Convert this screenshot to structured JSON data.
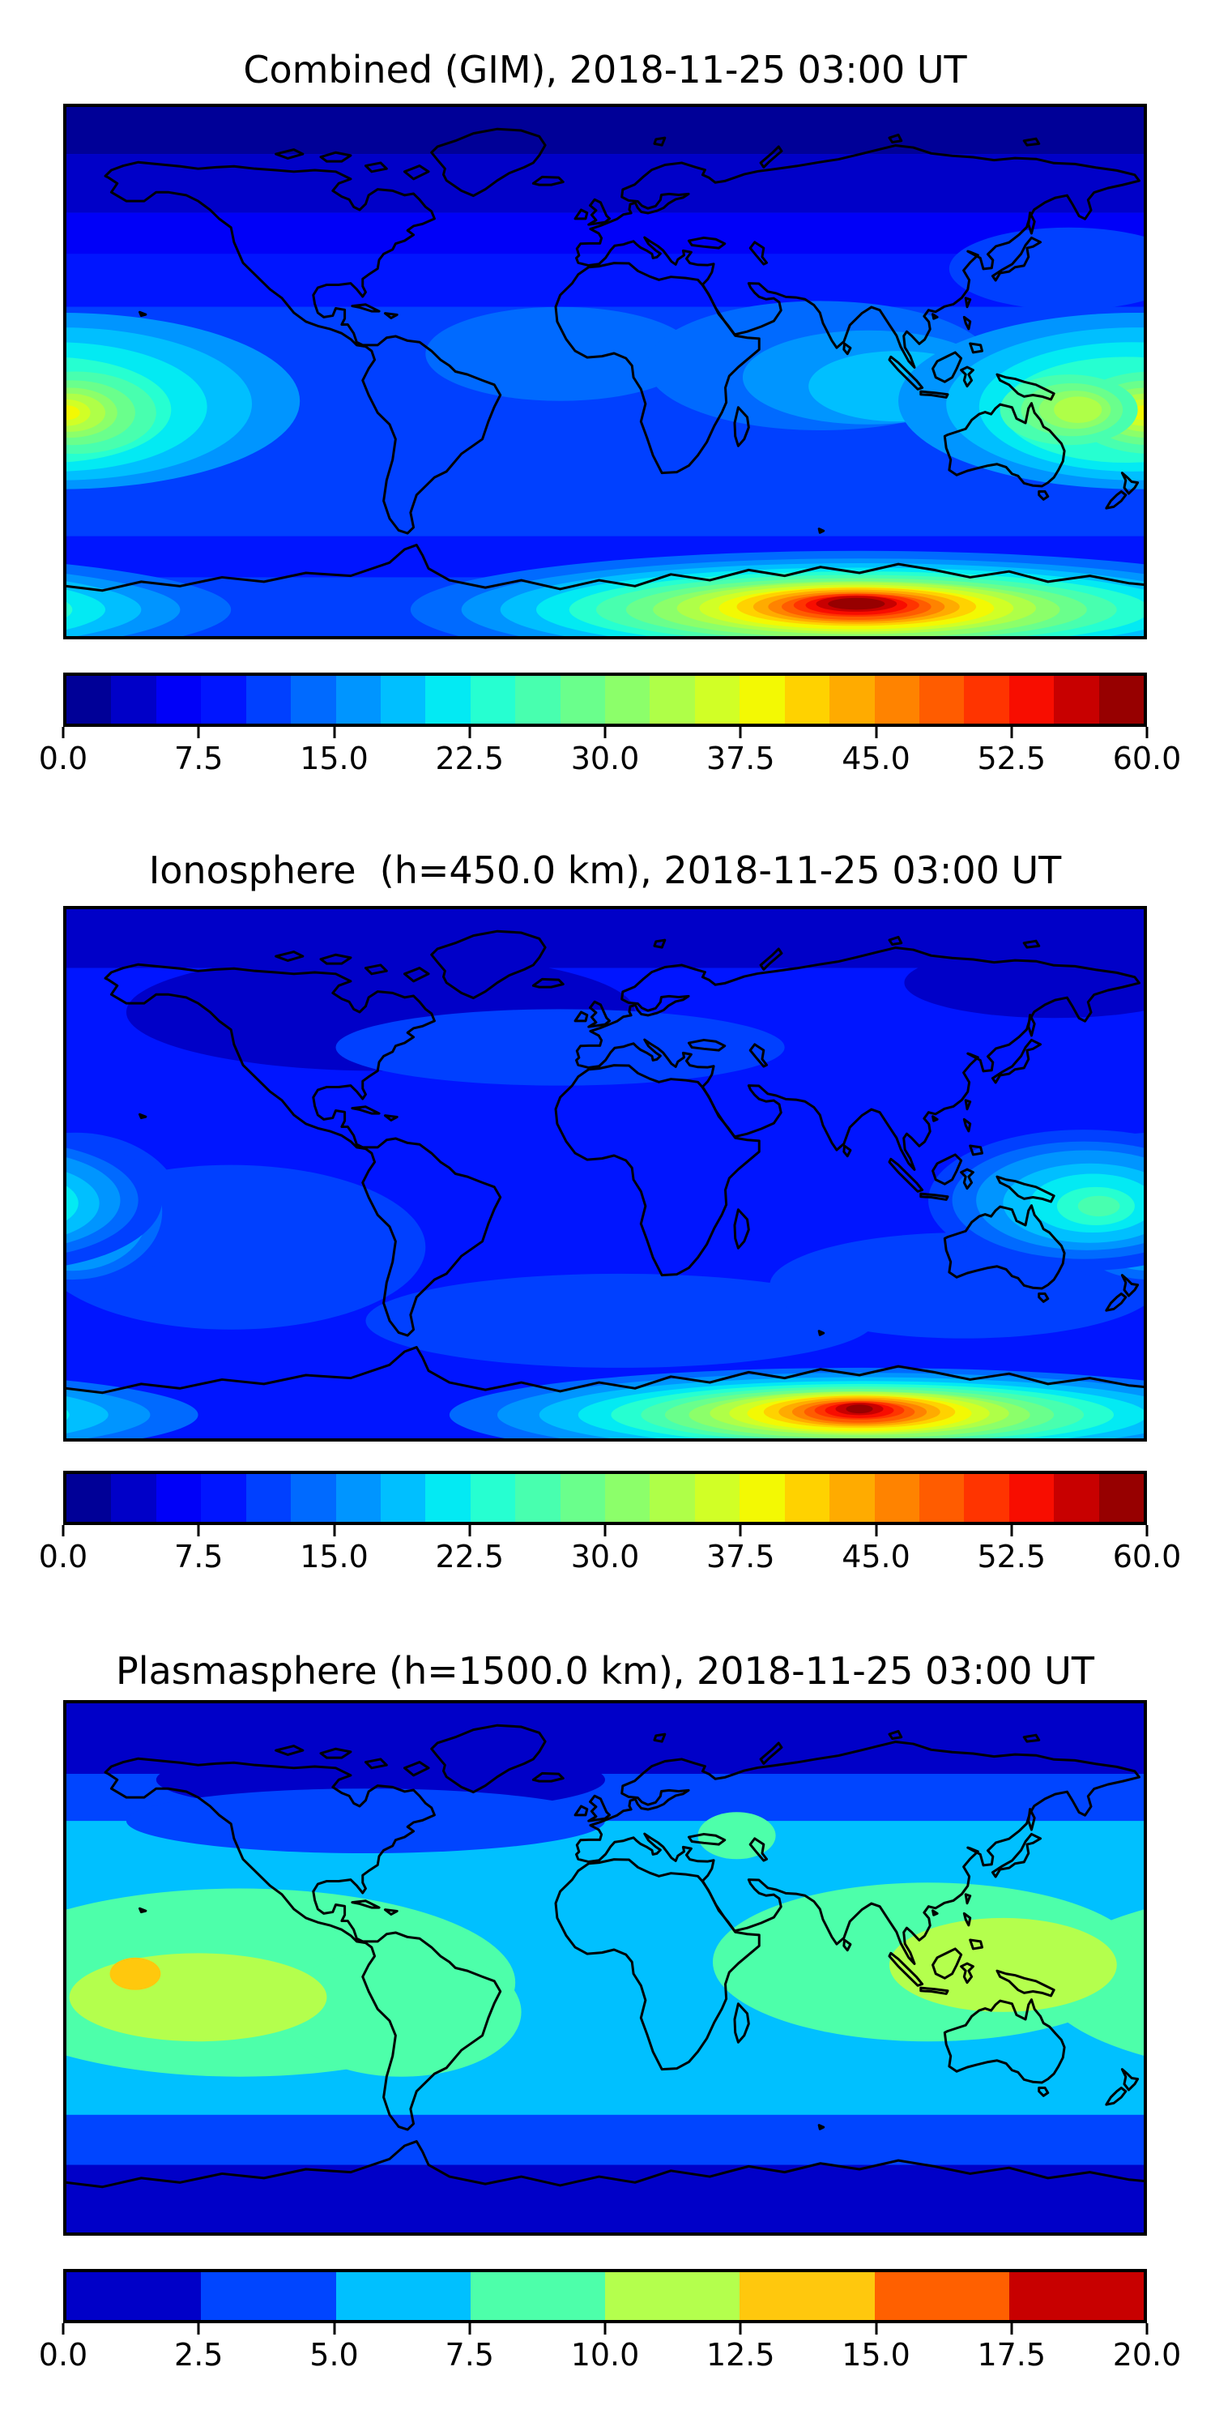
{
  "figure": {
    "background": "#ffffff",
    "map_frame_color": "#000000",
    "coastline_color": "#000000"
  },
  "panels": [
    {
      "id": "combined",
      "title": "Combined (GIM), 2018-11-25 03:00 UT",
      "colorbar": {
        "vmin": 0.0,
        "vmax": 60.0,
        "tick_labels": [
          "0.0",
          "7.5",
          "15.0",
          "22.5",
          "30.0",
          "37.5",
          "45.0",
          "52.5",
          "60.0"
        ],
        "segment_colors": [
          "#000097",
          "#0000c8",
          "#0000f8",
          "#0015ff",
          "#0040ff",
          "#006aff",
          "#0095ff",
          "#00bfff",
          "#03eaf3",
          "#26ffd1",
          "#48ffaf",
          "#6aff8c",
          "#8cff6a",
          "#afff48",
          "#d1ff26",
          "#f3f903",
          "#ffd200",
          "#ffab00",
          "#ff8300",
          "#ff5c00",
          "#ff3400",
          "#f80d00",
          "#c80000",
          "#970000"
        ]
      },
      "render": {
        "bands": [
          [
            0,
            16,
            "#000097"
          ],
          [
            16,
            36,
            "#0000c8"
          ],
          [
            36,
            50,
            "#0000f8"
          ],
          [
            50,
            68,
            "#0015ff"
          ],
          [
            68,
            146,
            "#0040ff"
          ],
          [
            146,
            160,
            "#0015ff"
          ],
          [
            160,
            180,
            "#0040ff"
          ]
        ],
        "blobs": [
          [
            165,
            84,
            45,
            16,
            "#006aff",
            0
          ],
          [
            252,
            88,
            58,
            22,
            "#006aff",
            0
          ],
          [
            268,
            92,
            42,
            16,
            "#0095ff",
            0
          ],
          [
            278,
            95,
            30,
            12,
            "#00bfff",
            0
          ],
          [
            335,
            55,
            40,
            14,
            "#0040ff",
            0
          ],
          [
            358,
            100,
            80,
            30,
            "#0095ff",
            1
          ],
          [
            358,
            101,
            64,
            26,
            "#00bfff",
            1
          ],
          [
            356,
            102,
            51,
            22,
            "#03eaf3",
            1
          ],
          [
            354,
            103,
            41,
            18,
            "#26ffd1",
            1
          ],
          [
            363,
            104,
            27,
            14,
            "#48ffaf",
            1
          ],
          [
            362,
            104,
            21,
            11,
            "#6aff8c",
            1
          ],
          [
            361,
            104,
            16,
            8.5,
            "#8cff6a",
            1
          ],
          [
            361,
            104,
            12,
            6.5,
            "#afff48",
            1
          ],
          [
            360,
            104,
            8,
            4.5,
            "#d1ff26",
            1
          ],
          [
            360,
            104,
            4.5,
            2.5,
            "#f3f903",
            1
          ],
          [
            335,
            103,
            23,
            12,
            "#48ffaf",
            0
          ],
          [
            336,
            103,
            17,
            9,
            "#6aff8c",
            0
          ],
          [
            337,
            103,
            12,
            6.5,
            "#8cff6a",
            0
          ],
          [
            338,
            103,
            8,
            4.5,
            "#afff48",
            0
          ],
          [
            265,
            171,
            150,
            20,
            "#006aff",
            1
          ],
          [
            265,
            171,
            133,
            17.4,
            "#0095ff",
            1
          ],
          [
            265,
            171,
            120,
            15.8,
            "#00bfff",
            1
          ],
          [
            265,
            171,
            108,
            14.3,
            "#03eaf3",
            1
          ],
          [
            265,
            171,
            97,
            13,
            "#26ffd1",
            1
          ],
          [
            264,
            171,
            87,
            11.8,
            "#48ffaf",
            1
          ],
          [
            264,
            171,
            77,
            10.7,
            "#6aff8c",
            1
          ],
          [
            264,
            171,
            68,
            9.7,
            "#8cff6a",
            1
          ],
          [
            264,
            170.5,
            60,
            8.8,
            "#afff48",
            1
          ],
          [
            264,
            170.5,
            52.5,
            8,
            "#d1ff26",
            1
          ],
          [
            264,
            170.5,
            46,
            7.2,
            "#f3f903",
            1
          ],
          [
            264,
            170,
            40,
            6.5,
            "#ffd200",
            1
          ],
          [
            264,
            170,
            34.5,
            5.8,
            "#ffab00",
            1
          ],
          [
            264,
            170,
            29.5,
            5.1,
            "#ff8300",
            1
          ],
          [
            264,
            170,
            25,
            4.5,
            "#ff5c00",
            1
          ],
          [
            264,
            169.5,
            21,
            3.9,
            "#ff3400",
            1
          ],
          [
            264,
            169.5,
            17,
            3.3,
            "#f80d00",
            1
          ],
          [
            264,
            169,
            13.5,
            2.7,
            "#c80000",
            1
          ],
          [
            264,
            169,
            9.5,
            2,
            "#970000",
            1
          ]
        ]
      }
    },
    {
      "id": "ionosphere",
      "title": "Ionosphere  (h=450.0 km), 2018-11-25 03:00 UT",
      "colorbar": {
        "vmin": 0.0,
        "vmax": 60.0,
        "tick_labels": [
          "0.0",
          "7.5",
          "15.0",
          "22.5",
          "30.0",
          "37.5",
          "45.0",
          "52.5",
          "60.0"
        ],
        "segment_colors": [
          "#000097",
          "#0000c8",
          "#0000f8",
          "#0015ff",
          "#0040ff",
          "#006aff",
          "#0095ff",
          "#00bfff",
          "#03eaf3",
          "#26ffd1",
          "#48ffaf",
          "#6aff8c",
          "#8cff6a",
          "#afff48",
          "#d1ff26",
          "#f3f903",
          "#ffd200",
          "#ffab00",
          "#ff8300",
          "#ff5c00",
          "#ff3400",
          "#f80d00",
          "#c80000",
          "#970000"
        ]
      },
      "render": {
        "bands": [
          [
            0,
            20,
            "#0000c8"
          ],
          [
            20,
            180,
            "#0015ff"
          ]
        ],
        "blobs": [
          [
            105,
            35,
            85,
            20,
            "#0000c8",
            0
          ],
          [
            330,
            25,
            50,
            12,
            "#0000c8",
            0
          ],
          [
            165,
            47,
            75,
            13,
            "#0040ff",
            0
          ],
          [
            55,
            115,
            65,
            28,
            "#0040ff",
            0
          ],
          [
            185,
            140,
            85,
            16,
            "#0040ff",
            0
          ],
          [
            300,
            128,
            65,
            18,
            "#0040ff",
            0
          ],
          [
            363,
            103,
            36,
            27,
            "#0040ff",
            1
          ],
          [
            362,
            103,
            30,
            23,
            "#006aff",
            1
          ],
          [
            362,
            104,
            25,
            19,
            "#0095ff",
            1
          ],
          [
            361,
            104,
            20,
            15,
            "#00bfff",
            1
          ],
          [
            361,
            104,
            15,
            11,
            "#03eaf3",
            1
          ],
          [
            360,
            104,
            10,
            7.5,
            "#26ffd1",
            1
          ],
          [
            360,
            104,
            5.5,
            4,
            "#48ffaf",
            1
          ],
          [
            340,
            99,
            52,
            24,
            "#0040ff",
            1
          ],
          [
            340,
            99,
            44,
            20,
            "#006aff",
            1
          ],
          [
            341,
            99,
            37,
            17,
            "#0095ff",
            1
          ],
          [
            342,
            100,
            29,
            13.5,
            "#00bfff",
            1
          ],
          [
            343,
            100,
            21,
            10,
            "#03eaf3",
            1
          ],
          [
            344,
            101,
            13,
            6.5,
            "#26ffd1",
            1
          ],
          [
            345,
            101,
            7,
            3.5,
            "#48ffaf",
            1
          ],
          [
            266,
            172,
            138,
            16,
            "#006aff",
            1
          ],
          [
            266,
            172,
            122,
            14.3,
            "#0095ff",
            1
          ],
          [
            266,
            172,
            108,
            12.8,
            "#00bfff",
            1
          ],
          [
            266,
            172,
            95,
            11.5,
            "#03eaf3",
            1
          ],
          [
            266,
            172,
            84,
            10.5,
            "#26ffd1",
            1
          ],
          [
            266,
            172,
            74,
            9.6,
            "#48ffaf",
            1
          ],
          [
            265,
            172,
            65,
            8.8,
            "#6aff8c",
            1
          ],
          [
            265,
            172,
            57,
            8,
            "#8cff6a",
            1
          ],
          [
            265,
            171.5,
            50,
            7.3,
            "#afff48",
            1
          ],
          [
            265,
            171.5,
            43.5,
            6.7,
            "#d1ff26",
            1
          ],
          [
            265,
            171.5,
            37.5,
            6.1,
            "#f3f903",
            1
          ],
          [
            265,
            171,
            32,
            5.5,
            "#ffd200",
            1
          ],
          [
            265,
            171,
            27,
            4.9,
            "#ffab00",
            1
          ],
          [
            265,
            171,
            22.5,
            4.3,
            "#ff8300",
            1
          ],
          [
            265,
            171,
            18.5,
            3.7,
            "#ff5c00",
            1
          ],
          [
            265,
            170.5,
            15,
            3.1,
            "#ff3400",
            1
          ],
          [
            265,
            170.5,
            11.5,
            2.6,
            "#f80d00",
            1
          ],
          [
            265,
            170,
            8,
            2.1,
            "#c80000",
            1
          ],
          [
            265,
            170,
            4.5,
            1.5,
            "#970000",
            1
          ]
        ]
      }
    },
    {
      "id": "plasmasphere",
      "title": "Plasmasphere (h=1500.0 km), 2018-11-25 03:00 UT",
      "colorbar": {
        "vmin": 0.0,
        "vmax": 20.0,
        "tick_labels": [
          "0.0",
          "2.5",
          "5.0",
          "7.5",
          "10.0",
          "12.5",
          "15.0",
          "17.5",
          "20.0"
        ],
        "segment_colors": [
          "#0000c8",
          "#0045ff",
          "#00c0ff",
          "#4dffaa",
          "#b4ff4d",
          "#ffc80d",
          "#ff6000",
          "#c80000"
        ]
      },
      "render": {
        "bands": [
          [
            0,
            24,
            "#0000c8"
          ],
          [
            24,
            40,
            "#0045ff"
          ],
          [
            40,
            140,
            "#00c0ff"
          ],
          [
            140,
            157,
            "#0045ff"
          ],
          [
            157,
            180,
            "#0000c8"
          ]
        ],
        "blobs": [
          [
            105,
            26,
            75,
            11,
            "#0000c8",
            0
          ],
          [
            100,
            40,
            80,
            11,
            "#0045ff",
            0
          ],
          [
            58,
            95,
            92,
            32,
            "#4dffaa",
            1
          ],
          [
            288,
            88,
            72,
            27,
            "#4dffaa",
            0
          ],
          [
            112,
            105,
            40,
            22,
            "#4dffaa",
            0
          ],
          [
            224,
            45,
            13,
            8,
            "#4dffaa",
            0
          ],
          [
            44,
            100,
            43,
            15,
            "#b4ff4d",
            1
          ],
          [
            313,
            89,
            38,
            16,
            "#b4ff4d",
            0
          ],
          [
            23,
            92,
            8.5,
            5.5,
            "#ffc80d",
            0
          ]
        ]
      }
    }
  ],
  "chart_data": [
    {
      "type": "heatmap",
      "title": "Combined (GIM), 2018-11-25 03:00 UT",
      "timestamp_ut": "2018-11-25 03:00",
      "colormap": "jet",
      "value_range": [
        0.0,
        60.0
      ],
      "contour_interval": 2.5,
      "colorbar_ticks": [
        0.0,
        7.5,
        15.0,
        22.5,
        30.0,
        37.5,
        45.0,
        52.5,
        60.0
      ],
      "extent": {
        "lon": [
          -180,
          180
        ],
        "lat": [
          -90,
          90
        ]
      },
      "projection": "equirectangular",
      "legend_position": "bottom",
      "features": [
        {
          "name": "south-polar-maximum",
          "lon": 85,
          "lat": -77,
          "peak_value": 60
        },
        {
          "name": "pacific-equatorial-maximum-west",
          "lon": -160,
          "lat": -14,
          "peak_value": 38
        },
        {
          "name": "pacific-equatorial-maximum-east",
          "lon": 155,
          "lat": -13,
          "peak_value": 33
        },
        {
          "name": "polar-minimum-north",
          "lat_range": [
            60,
            90
          ],
          "value_range": [
            0,
            5
          ]
        }
      ]
    },
    {
      "type": "heatmap",
      "title": "Ionosphere  (h=450.0 km), 2018-11-25 03:00 UT",
      "timestamp_ut": "2018-11-25 03:00",
      "altitude_km": 450.0,
      "colormap": "jet",
      "value_range": [
        0.0,
        60.0
      ],
      "contour_interval": 2.5,
      "colorbar_ticks": [
        0.0,
        7.5,
        15.0,
        22.5,
        30.0,
        37.5,
        45.0,
        52.5,
        60.0
      ],
      "extent": {
        "lon": [
          -180,
          180
        ],
        "lat": [
          -90,
          90
        ]
      },
      "projection": "equirectangular",
      "legend_position": "bottom",
      "features": [
        {
          "name": "south-polar-maximum",
          "lon": 85,
          "lat": -78,
          "peak_value": 60
        },
        {
          "name": "pacific-equatorial-maximum-west",
          "lon": -178,
          "lat": -14,
          "peak_value": 27
        },
        {
          "name": "pacific-equatorial-maximum-east",
          "lon": 162,
          "lat": -11,
          "peak_value": 26
        },
        {
          "name": "background-low",
          "value_range": [
            5,
            10
          ]
        }
      ]
    },
    {
      "type": "heatmap",
      "title": "Plasmasphere (h=1500.0 km), 2018-11-25 03:00 UT",
      "timestamp_ut": "2018-11-25 03:00",
      "altitude_km": 1500.0,
      "colormap": "jet",
      "value_range": [
        0.0,
        20.0
      ],
      "contour_interval": 2.5,
      "colorbar_ticks": [
        0.0,
        2.5,
        5.0,
        7.5,
        10.0,
        12.5,
        15.0,
        17.5,
        20.0
      ],
      "extent": {
        "lon": [
          -180,
          180
        ],
        "lat": [
          -90,
          90
        ]
      },
      "projection": "equirectangular",
      "legend_position": "bottom",
      "features": [
        {
          "name": "pacific-equatorial-maximum",
          "lon": -157,
          "lat": -2,
          "peak_value": 14
        },
        {
          "name": "asia-pacific-maximum",
          "lon": 133,
          "lat": 1,
          "peak_value": 12
        },
        {
          "name": "equatorial-belt",
          "lat_range": [
            -30,
            26
          ],
          "value_range": [
            7.5,
            10
          ]
        },
        {
          "name": "polar-minima",
          "value_range": [
            0,
            2.5
          ]
        }
      ]
    }
  ]
}
